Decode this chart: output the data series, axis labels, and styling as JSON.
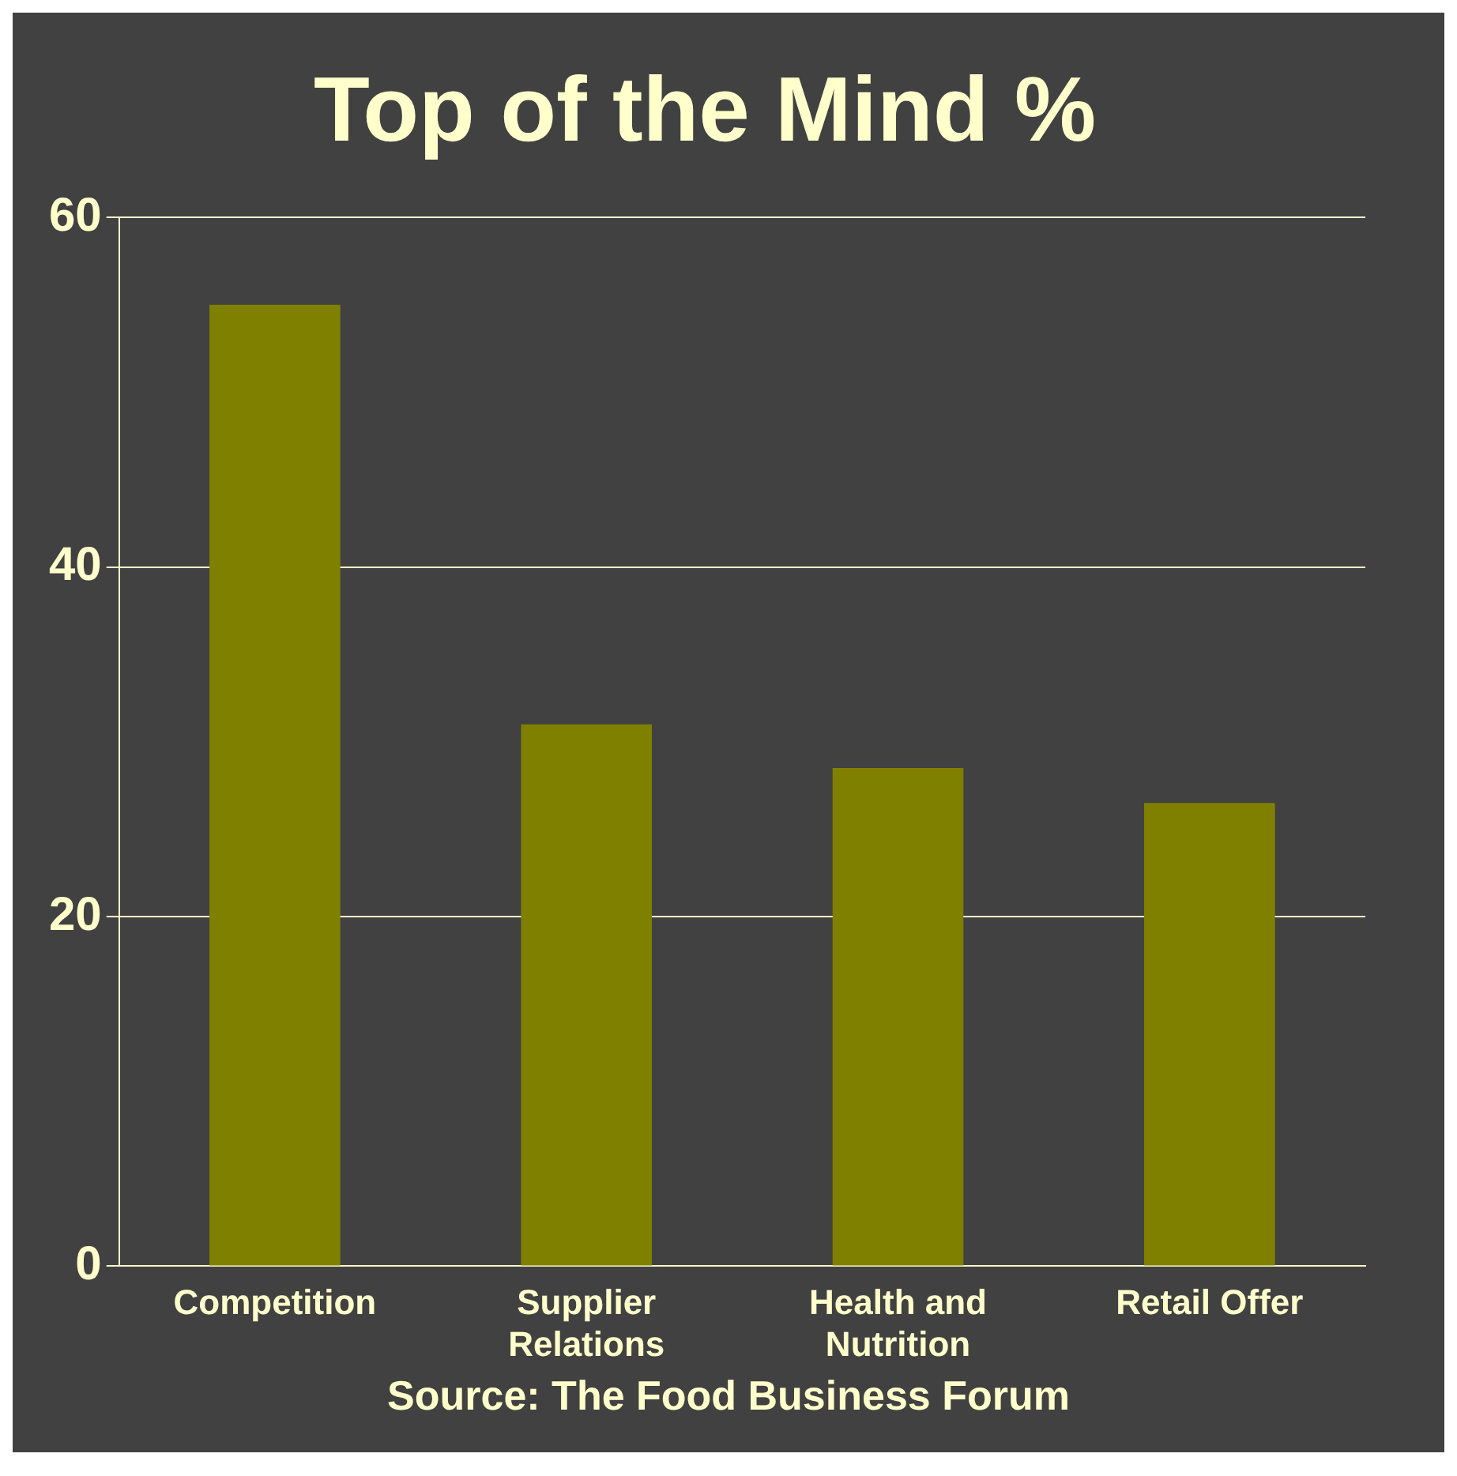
{
  "chart_data": {
    "type": "bar",
    "title": "Top of the Mind %",
    "categories": [
      "Competition",
      "Supplier Relations",
      "Health and Nutrition",
      "Retail Offer"
    ],
    "values": [
      55,
      31,
      28.5,
      26.5
    ],
    "color": "#808000",
    "ylim": [
      0,
      60
    ],
    "yticks": [
      0,
      20,
      40,
      60
    ],
    "grid": "y",
    "legend": false,
    "annotations": [
      "Source: The Food Business Forum"
    ]
  }
}
